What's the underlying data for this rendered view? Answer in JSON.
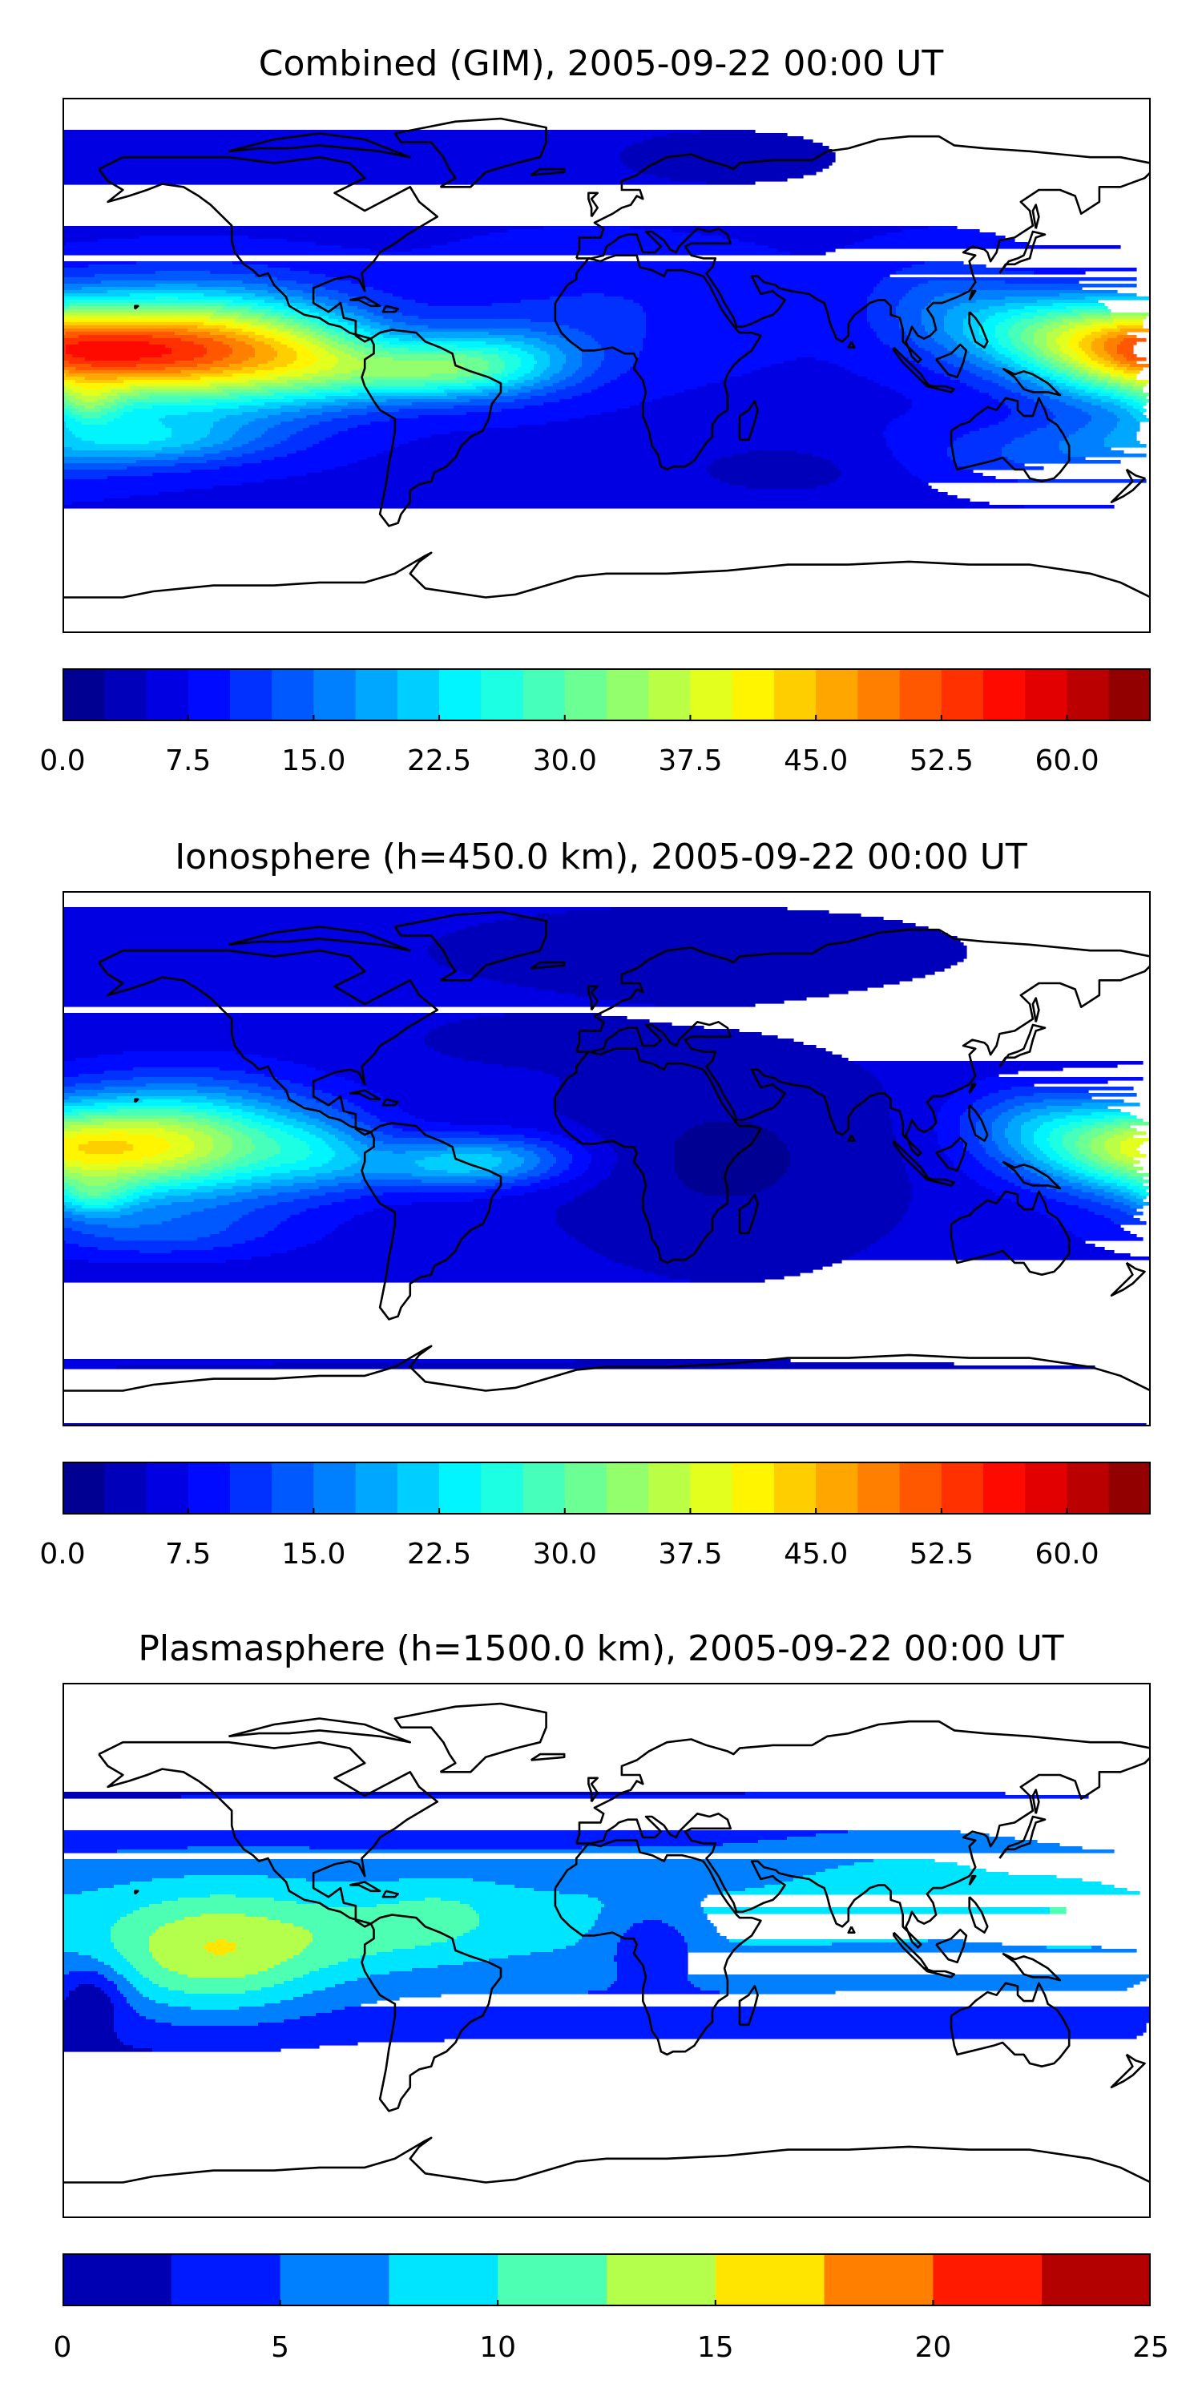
{
  "chart_data": [
    {
      "type": "heatmap",
      "title": "Combined (GIM), 2005-09-22 00:00 UT",
      "projection": "plate-carree world map with coastlines",
      "colormap": "jet",
      "color_range": [
        0,
        65
      ],
      "colorbar": {
        "levels": [
          0,
          2.5,
          5,
          7.5,
          10,
          12.5,
          15,
          17.5,
          20,
          22.5,
          25,
          27.5,
          30,
          32.5,
          35,
          37.5,
          40,
          42.5,
          45,
          47.5,
          50,
          52.5,
          55,
          57.5,
          60,
          62.5,
          65
        ],
        "tick_values": [
          0,
          7.5,
          15,
          22.5,
          30,
          37.5,
          45,
          52.5,
          60
        ],
        "tick_labels": [
          "0.0",
          "7.5",
          "15.0",
          "22.5",
          "30.0",
          "37.5",
          "45.0",
          "52.5",
          "60.0"
        ],
        "placement": "bottom"
      },
      "background_value": 7,
      "blobs": [
        {
          "lon": -135,
          "lat": 5,
          "sx": 32,
          "sy": 13,
          "v": 41
        },
        {
          "lon": -95,
          "lat": 2,
          "sx": 18,
          "sy": 10,
          "v": 10
        },
        {
          "lon": -60,
          "lat": -2,
          "sx": 22,
          "sy": 7,
          "v": 17
        },
        {
          "lon": -35,
          "lat": 2,
          "sx": 22,
          "sy": 8,
          "v": 12
        },
        {
          "lon": -155,
          "lat": -25,
          "sx": 30,
          "sy": 6,
          "v": 12
        },
        {
          "lon": -172,
          "lat": -13,
          "sx": 8,
          "sy": 5,
          "v": 10
        },
        {
          "lon": 175,
          "lat": 5,
          "sx": 25,
          "sy": 11,
          "v": 32
        },
        {
          "lon": 140,
          "lat": 12,
          "sx": 20,
          "sy": 9,
          "v": 12
        },
        {
          "lon": 110,
          "lat": 20,
          "sx": 18,
          "sy": 12,
          "v": 6
        },
        {
          "lon": 150,
          "lat": -30,
          "sx": 35,
          "sy": 8,
          "v": 6
        },
        {
          "lon": 0,
          "lat": 20,
          "sx": 40,
          "sy": 15,
          "v": 3
        },
        {
          "lon": 40,
          "lat": 70,
          "sx": 40,
          "sy": 10,
          "v": -3
        },
        {
          "lon": 60,
          "lat": -35,
          "sx": 30,
          "sy": 8,
          "v": -3
        },
        {
          "lon": 0,
          "lat": -80,
          "sx": 200,
          "sy": 8,
          "v": -2
        }
      ]
    },
    {
      "type": "heatmap",
      "title": "Ionosphere  (h=450.0 km), 2005-09-22 00:00 UT",
      "projection": "plate-carree world map with coastlines",
      "colormap": "jet",
      "color_range": [
        0,
        65
      ],
      "colorbar": {
        "levels": [
          0,
          2.5,
          5,
          7.5,
          10,
          12.5,
          15,
          17.5,
          20,
          22.5,
          25,
          27.5,
          30,
          32.5,
          35,
          37.5,
          40,
          42.5,
          45,
          47.5,
          50,
          52.5,
          55,
          57.5,
          60,
          62.5,
          65
        ],
        "tick_values": [
          0,
          7.5,
          15,
          22.5,
          30,
          37.5,
          45,
          52.5,
          60
        ],
        "tick_labels": [
          "0.0",
          "7.5",
          "15.0",
          "22.5",
          "30.0",
          "37.5",
          "45.0",
          "52.5",
          "60.0"
        ],
        "placement": "bottom"
      },
      "background_value": 6,
      "blobs": [
        {
          "lon": -140,
          "lat": 5,
          "sx": 30,
          "sy": 13,
          "v": 28
        },
        {
          "lon": -95,
          "lat": 2,
          "sx": 15,
          "sy": 9,
          "v": 8
        },
        {
          "lon": -55,
          "lat": -2,
          "sx": 20,
          "sy": 6,
          "v": 12
        },
        {
          "lon": -30,
          "lat": 0,
          "sx": 18,
          "sy": 6,
          "v": 8
        },
        {
          "lon": -170,
          "lat": -13,
          "sx": 10,
          "sy": 5,
          "v": 10
        },
        {
          "lon": -150,
          "lat": -25,
          "sx": 30,
          "sy": 6,
          "v": 6
        },
        {
          "lon": 175,
          "lat": 3,
          "sx": 25,
          "sy": 10,
          "v": 24
        },
        {
          "lon": 140,
          "lat": 12,
          "sx": 18,
          "sy": 9,
          "v": 8
        },
        {
          "lon": 40,
          "lat": 0,
          "sx": 40,
          "sy": 25,
          "v": -4
        },
        {
          "lon": 30,
          "lat": 70,
          "sx": 60,
          "sy": 10,
          "v": -3
        },
        {
          "lon": -30,
          "lat": 40,
          "sx": 25,
          "sy": 6,
          "v": -2
        },
        {
          "lon": 0,
          "lat": -80,
          "sx": 200,
          "sy": 8,
          "v": -3
        }
      ]
    },
    {
      "type": "heatmap",
      "title": "Plasmasphere (h=1500.0 km), 2005-09-22 00:00 UT",
      "projection": "plate-carree world map with coastlines",
      "colormap": "jet",
      "color_range": [
        0,
        25
      ],
      "colorbar": {
        "levels": [
          0,
          2.5,
          5,
          7.5,
          10,
          12.5,
          15,
          17.5,
          20,
          22.5,
          25
        ],
        "tick_values": [
          0,
          5,
          10,
          15,
          20,
          25
        ],
        "tick_labels": [
          "0",
          "5",
          "10",
          "15",
          "20",
          "25"
        ],
        "placement": "bottom"
      },
      "background_value": 1.5,
      "blobs": [
        {
          "lon": 0,
          "lat": 10,
          "sx": 360,
          "sy": 22,
          "v": 6.5
        },
        {
          "lon": -130,
          "lat": -2,
          "sx": 26,
          "sy": 14,
          "v": 8
        },
        {
          "lon": -75,
          "lat": 5,
          "sx": 25,
          "sy": 8,
          "v": 2.5
        },
        {
          "lon": -55,
          "lat": 14,
          "sx": 15,
          "sy": 7,
          "v": 2
        },
        {
          "lon": 150,
          "lat": 14,
          "sx": 15,
          "sy": 7,
          "v": 2.5
        },
        {
          "lon": 15,
          "lat": 2,
          "sx": 10,
          "sy": 8,
          "v": -5
        },
        {
          "lon": -170,
          "lat": -15,
          "sx": 8,
          "sy": 8,
          "v": -5
        },
        {
          "lon": 100,
          "lat": 30,
          "sx": 30,
          "sy": 10,
          "v": 2
        },
        {
          "lon": 0,
          "lat": -55,
          "sx": 200,
          "sy": 12,
          "v": -2
        }
      ]
    }
  ]
}
